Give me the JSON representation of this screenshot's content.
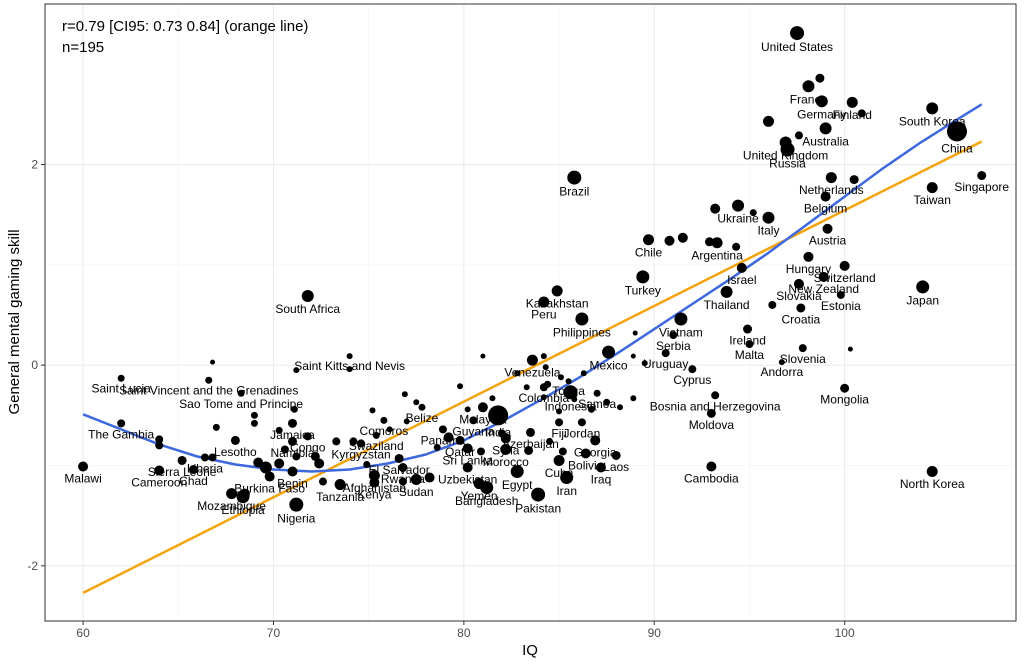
{
  "chart_data": {
    "type": "scatter",
    "xlabel": "IQ",
    "ylabel": "General mental gaming skill",
    "xlim": [
      58,
      109
    ],
    "ylim": [
      -2.55,
      3.6
    ],
    "x_ticks": [
      60,
      70,
      80,
      90,
      100
    ],
    "y_ticks": [
      -2,
      0,
      2
    ],
    "grid": true,
    "annotations": [
      "r=0.79 [CI95: 0.73 0.84] (orange line)",
      "n=195"
    ],
    "colors": {
      "points": "#000000",
      "linear_fit": "#F5A30C",
      "smooth_fit": "#3D68E0",
      "grid_major": "#EBEBEB",
      "grid_minor": "#F5F5F5",
      "panel_border": "#333333"
    },
    "linear_fit": {
      "x": [
        60.0,
        107.2
      ],
      "y": [
        -2.27,
        2.23
      ]
    },
    "smooth_fit": {
      "x": [
        60.0,
        62.0,
        64.0,
        66.0,
        68.0,
        70.0,
        72.0,
        74.0,
        76.0,
        78.0,
        80.0,
        82.0,
        84.0,
        86.0,
        88.0,
        90.0,
        92.0,
        94.0,
        96.0,
        98.0,
        100.0,
        102.0,
        104.0,
        106.0,
        107.2
      ],
      "y": [
        -0.49,
        -0.64,
        -0.79,
        -0.91,
        -0.99,
        -1.04,
        -1.06,
        -1.04,
        -0.98,
        -0.89,
        -0.75,
        -0.56,
        -0.35,
        -0.13,
        0.11,
        0.36,
        0.61,
        0.86,
        1.12,
        1.4,
        1.68,
        1.96,
        2.22,
        2.46,
        2.6
      ]
    },
    "labeled_points": [
      {
        "label": "United States",
        "x": 97.5,
        "y": 3.31,
        "size": 7
      },
      {
        "label": "France",
        "x": 98.1,
        "y": 2.78,
        "size": 6
      },
      {
        "label": "Germany",
        "x": 98.8,
        "y": 2.63,
        "size": 6
      },
      {
        "label": "Finland",
        "x": 100.4,
        "y": 2.62,
        "size": 5.5
      },
      {
        "label": "South Korea",
        "x": 104.6,
        "y": 2.56,
        "size": 6
      },
      {
        "label": "United Kingdom",
        "x": 96.9,
        "y": 2.22,
        "size": 6
      },
      {
        "label": "Australia",
        "x": 99.0,
        "y": 2.36,
        "size": 6
      },
      {
        "label": "China",
        "x": 105.9,
        "y": 2.33,
        "size": 10
      },
      {
        "label": "Russia",
        "x": 97.0,
        "y": 2.15,
        "size": 7
      },
      {
        "label": "Singapore",
        "x": 107.2,
        "y": 1.89,
        "size": 4.5
      },
      {
        "label": "Brazil",
        "x": 85.8,
        "y": 1.87,
        "size": 7
      },
      {
        "label": "Netherlands",
        "x": 99.3,
        "y": 1.87,
        "size": 5.5
      },
      {
        "label": "Taiwan",
        "x": 104.6,
        "y": 1.77,
        "size": 5.5
      },
      {
        "label": "Belgium",
        "x": 99.0,
        "y": 1.68,
        "size": 5
      },
      {
        "label": "Ukraine",
        "x": 94.4,
        "y": 1.59,
        "size": 6
      },
      {
        "label": "Italy",
        "x": 96.0,
        "y": 1.47,
        "size": 6
      },
      {
        "label": "Austria",
        "x": 99.1,
        "y": 1.36,
        "size": 5
      },
      {
        "label": "Chile",
        "x": 89.7,
        "y": 1.25,
        "size": 5.5
      },
      {
        "label": "Argentina",
        "x": 93.3,
        "y": 1.22,
        "size": 5.5
      },
      {
        "label": "Hungary",
        "x": 98.1,
        "y": 1.08,
        "size": 5
      },
      {
        "label": "Switzerland",
        "x": 100.0,
        "y": 0.99,
        "size": 5
      },
      {
        "label": "Israel",
        "x": 94.6,
        "y": 0.97,
        "size": 5
      },
      {
        "label": "Turkey",
        "x": 89.4,
        "y": 0.88,
        "size": 6.5
      },
      {
        "label": "New Zealand",
        "x": 98.9,
        "y": 0.88,
        "size": 5
      },
      {
        "label": "Japan",
        "x": 104.1,
        "y": 0.78,
        "size": 6.5
      },
      {
        "label": "Kazakhstan",
        "x": 84.9,
        "y": 0.74,
        "size": 5.5
      },
      {
        "label": "Slovakia",
        "x": 97.6,
        "y": 0.81,
        "size": 5
      },
      {
        "label": "Thailand",
        "x": 93.8,
        "y": 0.73,
        "size": 6
      },
      {
        "label": "Estonia",
        "x": 99.8,
        "y": 0.7,
        "size": 4
      },
      {
        "label": "South Africa",
        "x": 71.8,
        "y": 0.69,
        "size": 6
      },
      {
        "label": "Peru",
        "x": 84.2,
        "y": 0.63,
        "size": 5.5
      },
      {
        "label": "Croatia",
        "x": 97.7,
        "y": 0.57,
        "size": 4.5
      },
      {
        "label": "Philippines",
        "x": 86.2,
        "y": 0.46,
        "size": 6.5
      },
      {
        "label": "Vietnam",
        "x": 91.4,
        "y": 0.46,
        "size": 6.5
      },
      {
        "label": "Ireland",
        "x": 94.9,
        "y": 0.36,
        "size": 4.5
      },
      {
        "label": "Serbia",
        "x": 91.0,
        "y": 0.3,
        "size": 4
      },
      {
        "label": "Malta",
        "x": 95.0,
        "y": 0.21,
        "size": 4
      },
      {
        "label": "Slovenia",
        "x": 97.8,
        "y": 0.17,
        "size": 4
      },
      {
        "label": "Mexico",
        "x": 87.6,
        "y": 0.13,
        "size": 6.5
      },
      {
        "label": "Uruguay",
        "x": 90.6,
        "y": 0.12,
        "size": 4
      },
      {
        "label": "Venezuela",
        "x": 83.6,
        "y": 0.05,
        "size": 5.5
      },
      {
        "label": "Saint Kitts and Nevis",
        "x": 74.0,
        "y": 0.09,
        "size": 3
      },
      {
        "label": "Andorra",
        "x": 96.7,
        "y": 0.03,
        "size": 3
      },
      {
        "label": "Cyprus",
        "x": 92.0,
        "y": -0.04,
        "size": 4
      },
      {
        "label": "Saint Lucia",
        "x": 62.0,
        "y": -0.13,
        "size": 3.5
      },
      {
        "label": "Saint Vincent and the Grenadines",
        "x": 66.6,
        "y": -0.15,
        "size": 3.5
      },
      {
        "label": "Colombia",
        "x": 84.2,
        "y": -0.22,
        "size": 4
      },
      {
        "label": "Tonga",
        "x": 85.5,
        "y": -0.16,
        "size": 3
      },
      {
        "label": "Mongolia",
        "x": 100.0,
        "y": -0.23,
        "size": 4.5
      },
      {
        "label": "Sao Tome and Principe",
        "x": 68.3,
        "y": -0.28,
        "size": 3.5
      },
      {
        "label": "Samoa",
        "x": 87.0,
        "y": -0.28,
        "size": 3.5
      },
      {
        "label": "Bosnia and Herzegovina",
        "x": 93.2,
        "y": -0.3,
        "size": 4
      },
      {
        "label": "Indonesia",
        "x": 85.6,
        "y": -0.27,
        "size": 7
      },
      {
        "label": "Belize",
        "x": 77.8,
        "y": -0.42,
        "size": 3.5
      },
      {
        "label": "Malaysia",
        "x": 81.0,
        "y": -0.42,
        "size": 5
      },
      {
        "label": "Comoros",
        "x": 75.8,
        "y": -0.55,
        "size": 3.5
      },
      {
        "label": "Guyana",
        "x": 80.5,
        "y": -0.55,
        "size": 4
      },
      {
        "label": "Fiji",
        "x": 85.0,
        "y": -0.57,
        "size": 4
      },
      {
        "label": "Jordan",
        "x": 86.2,
        "y": -0.57,
        "size": 4
      },
      {
        "label": "Moldova",
        "x": 93.0,
        "y": -0.48,
        "size": 4.5
      },
      {
        "label": "Jamaica",
        "x": 71.0,
        "y": -0.58,
        "size": 4.5
      },
      {
        "label": "Panama",
        "x": 78.9,
        "y": -0.64,
        "size": 4
      },
      {
        "label": "India",
        "x": 81.8,
        "y": -0.5,
        "size": 10
      },
      {
        "label": "Swaziland",
        "x": 75.4,
        "y": -0.7,
        "size": 3.5
      },
      {
        "label": "Congo",
        "x": 71.8,
        "y": -0.71,
        "size": 4
      },
      {
        "label": "Azerbaijan",
        "x": 83.5,
        "y": -0.67,
        "size": 4.5
      },
      {
        "label": "The Gambia",
        "x": 62.0,
        "y": -0.58,
        "size": 4
      },
      {
        "label": "Lesotho",
        "x": 68.0,
        "y": -0.75,
        "size": 4.5
      },
      {
        "label": "Qatar",
        "x": 79.8,
        "y": -0.75,
        "size": 4.5
      },
      {
        "label": "Syria",
        "x": 82.2,
        "y": -0.73,
        "size": 5
      },
      {
        "label": "Georgia",
        "x": 86.9,
        "y": -0.75,
        "size": 5
      },
      {
        "label": "Namibia",
        "x": 71.0,
        "y": -0.76,
        "size": 4.5
      },
      {
        "label": "Kyrgyzstan",
        "x": 74.6,
        "y": -0.78,
        "size": 4
      },
      {
        "label": "Sri Lanka",
        "x": 80.2,
        "y": -0.83,
        "size": 5
      },
      {
        "label": "Morocco",
        "x": 82.2,
        "y": -0.84,
        "size": 5.5
      },
      {
        "label": "Bolivia",
        "x": 86.4,
        "y": -0.88,
        "size": 5
      },
      {
        "label": "Laos",
        "x": 88.0,
        "y": -0.9,
        "size": 4.5
      },
      {
        "label": "Liberia",
        "x": 66.4,
        "y": -0.92,
        "size": 4
      },
      {
        "label": "El Salvador",
        "x": 76.6,
        "y": -0.93,
        "size": 4.5
      },
      {
        "label": "Sierra Leone",
        "x": 65.2,
        "y": -0.95,
        "size": 4.5
      },
      {
        "label": "Cuba",
        "x": 85.0,
        "y": -0.95,
        "size": 5.5
      },
      {
        "label": "Iraq",
        "x": 87.2,
        "y": -1.02,
        "size": 5
      },
      {
        "label": "Rwanda",
        "x": 76.8,
        "y": -1.02,
        "size": 4.5
      },
      {
        "label": "Uzbekistan",
        "x": 80.2,
        "y": -1.02,
        "size": 5
      },
      {
        "label": "Malawi",
        "x": 60.0,
        "y": -1.01,
        "size": 5
      },
      {
        "label": "Cambodia",
        "x": 93.0,
        "y": -1.01,
        "size": 5
      },
      {
        "label": "Chad",
        "x": 65.8,
        "y": -1.04,
        "size": 4.5
      },
      {
        "label": "Benin",
        "x": 71.0,
        "y": -1.06,
        "size": 5
      },
      {
        "label": "North Korea",
        "x": 104.6,
        "y": -1.06,
        "size": 5.5
      },
      {
        "label": "Burkina Faso",
        "x": 69.8,
        "y": -1.11,
        "size": 5
      },
      {
        "label": "Egypt",
        "x": 82.8,
        "y": -1.06,
        "size": 6.5
      },
      {
        "label": "Cameroon",
        "x": 64.0,
        "y": -1.05,
        "size": 5
      },
      {
        "label": "Afghanistan",
        "x": 75.3,
        "y": -1.1,
        "size": 5.5
      },
      {
        "label": "Sudan",
        "x": 77.5,
        "y": -1.14,
        "size": 5.5
      },
      {
        "label": "Kenya",
        "x": 75.3,
        "y": -1.17,
        "size": 5
      },
      {
        "label": "Yemen",
        "x": 80.8,
        "y": -1.18,
        "size": 5.5
      },
      {
        "label": "Mozambique",
        "x": 67.8,
        "y": -1.28,
        "size": 5.5
      },
      {
        "label": "Tanzania",
        "x": 73.5,
        "y": -1.19,
        "size": 5.5
      },
      {
        "label": "Iran",
        "x": 85.4,
        "y": -1.12,
        "size": 6.5
      },
      {
        "label": "Ethiopia",
        "x": 68.4,
        "y": -1.31,
        "size": 6.5
      },
      {
        "label": "Bangladesh",
        "x": 81.2,
        "y": -1.22,
        "size": 6.5
      },
      {
        "label": "Pakistan",
        "x": 83.9,
        "y": -1.29,
        "size": 7
      },
      {
        "label": "Nigeria",
        "x": 71.2,
        "y": -1.39,
        "size": 7
      }
    ],
    "unlabeled_points": [
      {
        "x": 98.7,
        "y": 2.86,
        "size": 4.5
      },
      {
        "x": 100.9,
        "y": 2.51,
        "size": 4
      },
      {
        "x": 96.0,
        "y": 2.43,
        "size": 5.5
      },
      {
        "x": 97.6,
        "y": 2.29,
        "size": 4
      },
      {
        "x": 99.0,
        "y": 1.69,
        "size": 4
      },
      {
        "x": 100.5,
        "y": 1.85,
        "size": 4.5
      },
      {
        "x": 93.2,
        "y": 1.56,
        "size": 5
      },
      {
        "x": 95.2,
        "y": 1.52,
        "size": 3.5
      },
      {
        "x": 91.5,
        "y": 1.27,
        "size": 5
      },
      {
        "x": 90.8,
        "y": 1.24,
        "size": 5
      },
      {
        "x": 92.9,
        "y": 1.23,
        "size": 4.5
      },
      {
        "x": 94.3,
        "y": 1.18,
        "size": 4
      },
      {
        "x": 96.2,
        "y": 0.6,
        "size": 4
      },
      {
        "x": 100.3,
        "y": 0.16,
        "size": 2.5
      },
      {
        "x": 89.0,
        "y": 0.32,
        "size": 2.5
      },
      {
        "x": 88.9,
        "y": 0.09,
        "size": 2.5
      },
      {
        "x": 89.5,
        "y": 0.02,
        "size": 3
      },
      {
        "x": 84.2,
        "y": 0.09,
        "size": 3
      },
      {
        "x": 81.0,
        "y": 0.09,
        "size": 2.5
      },
      {
        "x": 84.3,
        "y": -0.02,
        "size": 3
      },
      {
        "x": 82.8,
        "y": -0.08,
        "size": 3
      },
      {
        "x": 85.1,
        "y": -0.12,
        "size": 3
      },
      {
        "x": 86.3,
        "y": -0.08,
        "size": 3
      },
      {
        "x": 83.3,
        "y": -0.22,
        "size": 3
      },
      {
        "x": 84.4,
        "y": -0.19,
        "size": 3.5
      },
      {
        "x": 84.2,
        "y": -0.32,
        "size": 3
      },
      {
        "x": 85.8,
        "y": -0.34,
        "size": 3
      },
      {
        "x": 87.5,
        "y": -0.37,
        "size": 3.5
      },
      {
        "x": 88.2,
        "y": -0.42,
        "size": 3
      },
      {
        "x": 88.9,
        "y": -0.33,
        "size": 3
      },
      {
        "x": 86.7,
        "y": -0.44,
        "size": 3.5
      },
      {
        "x": 85.0,
        "y": -0.46,
        "size": 3
      },
      {
        "x": 81.5,
        "y": -0.33,
        "size": 3
      },
      {
        "x": 80.2,
        "y": -0.44,
        "size": 3
      },
      {
        "x": 79.8,
        "y": -0.21,
        "size": 3
      },
      {
        "x": 82.0,
        "y": -0.68,
        "size": 4
      },
      {
        "x": 84.5,
        "y": -0.76,
        "size": 3.5
      },
      {
        "x": 85.2,
        "y": -0.86,
        "size": 4
      },
      {
        "x": 83.4,
        "y": -0.85,
        "size": 4.5
      },
      {
        "x": 80.9,
        "y": -0.86,
        "size": 4
      },
      {
        "x": 79.2,
        "y": -0.72,
        "size": 5
      },
      {
        "x": 78.6,
        "y": -0.82,
        "size": 3.5
      },
      {
        "x": 77.0,
        "y": -0.56,
        "size": 3
      },
      {
        "x": 76.1,
        "y": -0.64,
        "size": 3
      },
      {
        "x": 75.2,
        "y": -0.45,
        "size": 3
      },
      {
        "x": 76.9,
        "y": -0.29,
        "size": 3
      },
      {
        "x": 77.5,
        "y": -0.37,
        "size": 3
      },
      {
        "x": 74.2,
        "y": -0.76,
        "size": 4
      },
      {
        "x": 73.3,
        "y": -0.76,
        "size": 4
      },
      {
        "x": 74.9,
        "y": -0.99,
        "size": 3.5
      },
      {
        "x": 72.2,
        "y": -0.91,
        "size": 4.5
      },
      {
        "x": 72.4,
        "y": -0.98,
        "size": 5
      },
      {
        "x": 70.3,
        "y": -0.98,
        "size": 5
      },
      {
        "x": 69.6,
        "y": -1.02,
        "size": 6
      },
      {
        "x": 70.6,
        "y": -0.84,
        "size": 4
      },
      {
        "x": 71.2,
        "y": -0.91,
        "size": 4
      },
      {
        "x": 70.3,
        "y": -0.65,
        "size": 3.5
      },
      {
        "x": 71.1,
        "y": -0.44,
        "size": 3.5
      },
      {
        "x": 69.0,
        "y": -0.5,
        "size": 3.5
      },
      {
        "x": 69.0,
        "y": -0.58,
        "size": 3.5
      },
      {
        "x": 67.0,
        "y": -0.62,
        "size": 3.5
      },
      {
        "x": 66.8,
        "y": -0.92,
        "size": 4
      },
      {
        "x": 64.0,
        "y": -0.74,
        "size": 4
      },
      {
        "x": 64.0,
        "y": -0.8,
        "size": 4
      },
      {
        "x": 68.5,
        "y": -1.28,
        "size": 5
      },
      {
        "x": 72.6,
        "y": -1.16,
        "size": 4
      },
      {
        "x": 78.2,
        "y": -1.12,
        "size": 5
      },
      {
        "x": 76.8,
        "y": -1.16,
        "size": 4
      },
      {
        "x": 69.2,
        "y": -0.97,
        "size": 5
      },
      {
        "x": 66.8,
        "y": 0.03,
        "size": 2.5
      },
      {
        "x": 74.0,
        "y": -0.04,
        "size": 3
      },
      {
        "x": 71.2,
        "y": -0.05,
        "size": 3
      }
    ]
  }
}
